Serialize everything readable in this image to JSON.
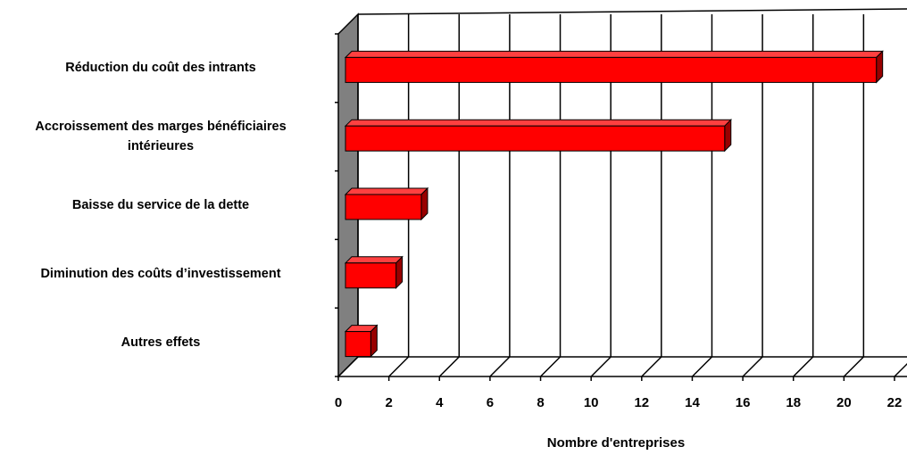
{
  "chart_data": {
    "type": "bar",
    "orientation": "horizontal",
    "categories": [
      "Réduction du coût des intrants",
      "Accroissement des marges bénéficiaires intérieures",
      "Baisse du service de la dette",
      "Diminution des coûts d’investissement",
      "Autres effets"
    ],
    "values": [
      21,
      15,
      3,
      2,
      1
    ],
    "color": "#ff0000",
    "xlim": [
      0,
      22
    ],
    "xticks": [
      0,
      2,
      4,
      6,
      8,
      10,
      12,
      14,
      16,
      18,
      20,
      22
    ],
    "xlabel": "Nombre d'entreprises",
    "grid": true
  }
}
